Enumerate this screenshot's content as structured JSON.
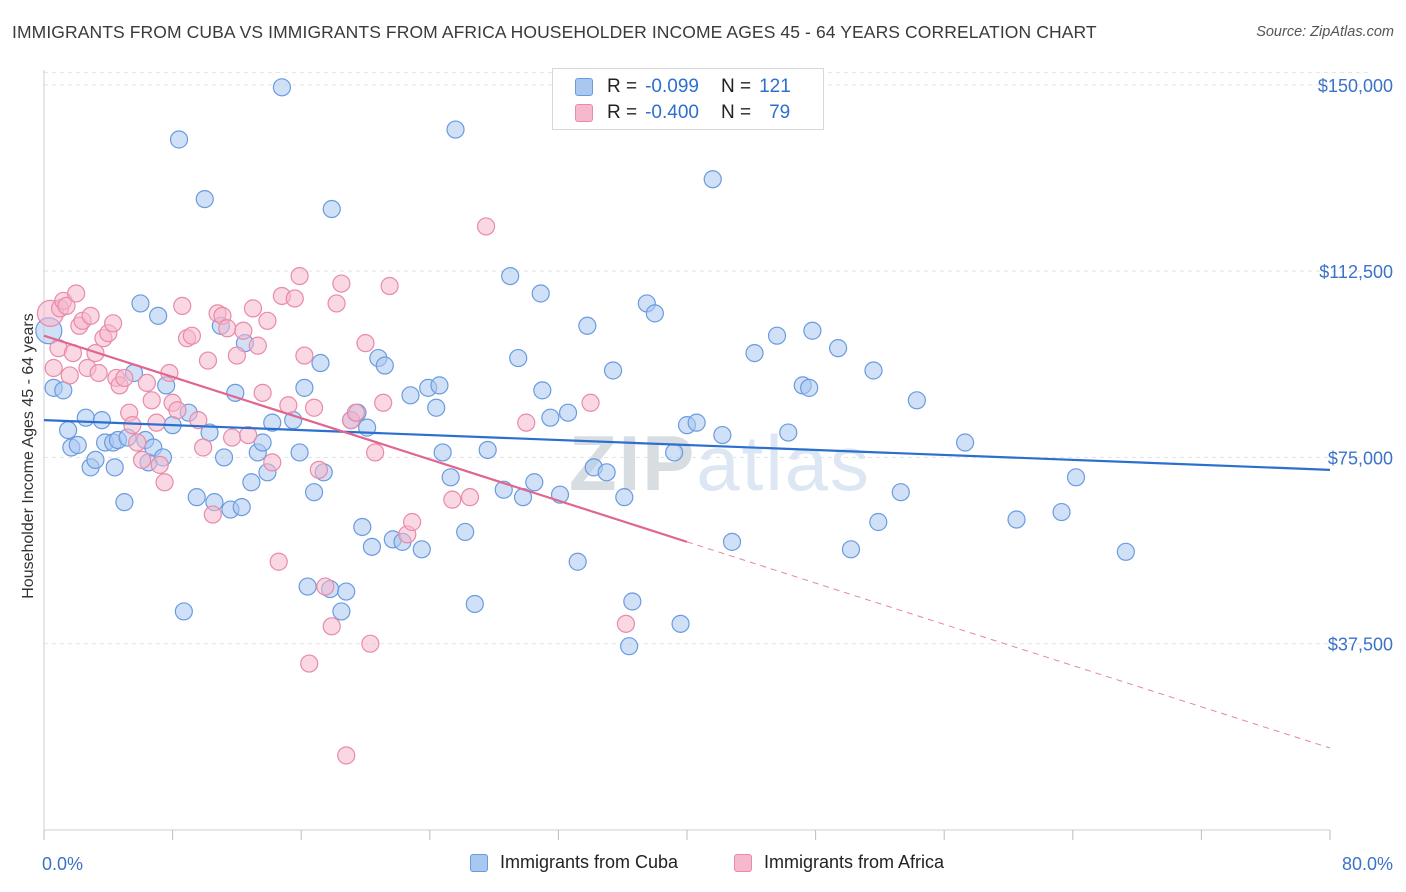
{
  "title": "IMMIGRANTS FROM CUBA VS IMMIGRANTS FROM AFRICA HOUSEHOLDER INCOME AGES 45 - 64 YEARS CORRELATION CHART",
  "source": "Source: ZipAtlas.com",
  "watermark": "ZIPatlas",
  "colors": {
    "cuba_fill": "#a9c8f0",
    "cuba_stroke": "#6a9be0",
    "cuba_line": "#2b6fcf",
    "africa_fill": "#f6b8cc",
    "africa_stroke": "#e98aa8",
    "africa_line": "#e06690",
    "tick_text": "#3b73c8",
    "grid": "#e3e3e3"
  },
  "legend": {
    "rows": [
      {
        "r_label": "R =",
        "r_value": "-0.099",
        "n_label": "N =",
        "n_value": "121"
      },
      {
        "r_label": "R =",
        "r_value": "-0.400",
        "n_label": "N =",
        "n_value": "79"
      }
    ]
  },
  "bottom_legend": [
    "Immigrants from Cuba",
    "Immigrants from Africa"
  ],
  "chart_data": {
    "type": "scatter",
    "title": "IMMIGRANTS FROM CUBA VS IMMIGRANTS FROM AFRICA HOUSEHOLDER INCOME AGES 45 - 64 YEARS CORRELATION CHART",
    "xlabel": "",
    "ylabel": "Householder Income Ages 45 - 64 years",
    "xlim": [
      0,
      80
    ],
    "ylim": [
      0,
      155000
    ],
    "x_tick_labels": [
      "0.0%",
      "80.0%"
    ],
    "y_ticks": [
      37500,
      75000,
      112500,
      150000
    ],
    "y_tick_labels": [
      "$37,500",
      "$75,000",
      "$112,500",
      "$150,000"
    ],
    "grid": true,
    "series": [
      {
        "name": "Immigrants from Cuba",
        "R": -0.099,
        "N": 121,
        "trend": {
          "x": [
            0,
            80
          ],
          "y": [
            82500,
            72500
          ]
        },
        "points": [
          [
            0.3,
            100500
          ],
          [
            0.6,
            89000
          ],
          [
            1.2,
            88500
          ],
          [
            1.5,
            80500
          ],
          [
            1.7,
            77000
          ],
          [
            2.1,
            77500
          ],
          [
            2.6,
            83000
          ],
          [
            2.9,
            73000
          ],
          [
            3.2,
            74500
          ],
          [
            3.6,
            82500
          ],
          [
            3.8,
            78000
          ],
          [
            4.3,
            78000
          ],
          [
            4.4,
            73000
          ],
          [
            4.6,
            78500
          ],
          [
            5.0,
            66000
          ],
          [
            5.2,
            79000
          ],
          [
            5.6,
            92000
          ],
          [
            6.0,
            106000
          ],
          [
            6.3,
            78500
          ],
          [
            6.5,
            74000
          ],
          [
            6.8,
            77000
          ],
          [
            7.1,
            103500
          ],
          [
            7.4,
            75000
          ],
          [
            7.6,
            89500
          ],
          [
            8.0,
            81500
          ],
          [
            8.4,
            139000
          ],
          [
            8.7,
            44000
          ],
          [
            9.0,
            84000
          ],
          [
            9.5,
            67000
          ],
          [
            10.0,
            127000
          ],
          [
            10.3,
            80000
          ],
          [
            10.6,
            66000
          ],
          [
            11.0,
            101500
          ],
          [
            11.2,
            75000
          ],
          [
            11.6,
            64500
          ],
          [
            11.9,
            88000
          ],
          [
            12.3,
            65000
          ],
          [
            12.5,
            98000
          ],
          [
            12.9,
            70000
          ],
          [
            13.3,
            76000
          ],
          [
            13.6,
            78000
          ],
          [
            13.9,
            72000
          ],
          [
            14.2,
            82000
          ],
          [
            14.8,
            149500
          ],
          [
            15.5,
            82500
          ],
          [
            15.9,
            76000
          ],
          [
            16.2,
            89000
          ],
          [
            16.4,
            49000
          ],
          [
            16.8,
            68000
          ],
          [
            17.2,
            94000
          ],
          [
            17.4,
            72000
          ],
          [
            17.8,
            48500
          ],
          [
            17.9,
            125000
          ],
          [
            18.5,
            44000
          ],
          [
            18.8,
            48000
          ],
          [
            19.1,
            82500
          ],
          [
            19.5,
            84000
          ],
          [
            19.8,
            61000
          ],
          [
            20.1,
            81000
          ],
          [
            20.4,
            57000
          ],
          [
            20.8,
            95000
          ],
          [
            21.2,
            93500
          ],
          [
            21.7,
            58500
          ],
          [
            22.3,
            58000
          ],
          [
            22.8,
            87500
          ],
          [
            23.5,
            56500
          ],
          [
            23.9,
            89000
          ],
          [
            24.4,
            85000
          ],
          [
            24.6,
            89500
          ],
          [
            24.8,
            76000
          ],
          [
            25.3,
            71000
          ],
          [
            25.6,
            141000
          ],
          [
            26.2,
            60000
          ],
          [
            26.8,
            45500
          ],
          [
            27.6,
            76500
          ],
          [
            28.6,
            68500
          ],
          [
            29.0,
            111500
          ],
          [
            29.5,
            95000
          ],
          [
            29.8,
            67000
          ],
          [
            30.5,
            70000
          ],
          [
            30.9,
            108000
          ],
          [
            31.0,
            88500
          ],
          [
            31.5,
            83000
          ],
          [
            32.1,
            67500
          ],
          [
            32.6,
            84000
          ],
          [
            33.2,
            54000
          ],
          [
            33.8,
            101500
          ],
          [
            34.2,
            73000
          ],
          [
            35.0,
            72000
          ],
          [
            35.4,
            92500
          ],
          [
            36.1,
            67000
          ],
          [
            36.6,
            46000
          ],
          [
            36.4,
            37000
          ],
          [
            37.5,
            106000
          ],
          [
            38.0,
            104000
          ],
          [
            39.2,
            76000
          ],
          [
            39.6,
            41500
          ],
          [
            40.0,
            81500
          ],
          [
            40.6,
            82000
          ],
          [
            41.6,
            131000
          ],
          [
            42.2,
            79500
          ],
          [
            42.8,
            58000
          ],
          [
            44.2,
            96000
          ],
          [
            45.6,
            99500
          ],
          [
            46.3,
            80000
          ],
          [
            47.2,
            89500
          ],
          [
            47.6,
            89000
          ],
          [
            47.8,
            100500
          ],
          [
            49.4,
            97000
          ],
          [
            50.2,
            56500
          ],
          [
            51.6,
            92500
          ],
          [
            51.9,
            62000
          ],
          [
            53.3,
            68000
          ],
          [
            54.3,
            86500
          ],
          [
            57.3,
            78000
          ],
          [
            60.5,
            62500
          ],
          [
            63.3,
            64000
          ],
          [
            64.2,
            71000
          ],
          [
            67.3,
            56000
          ]
        ]
      },
      {
        "name": "Immigrants from Africa",
        "R": -0.4,
        "N": 79,
        "trend": {
          "x": [
            0,
            40
          ],
          "y": [
            99500,
            58000
          ]
        },
        "trend_dashed": {
          "x": [
            40,
            80
          ],
          "y": [
            58000,
            16500
          ]
        },
        "points": [
          [
            0.4,
            104000
          ],
          [
            0.6,
            93000
          ],
          [
            0.9,
            97000
          ],
          [
            1.0,
            105000
          ],
          [
            1.2,
            106500
          ],
          [
            1.4,
            105500
          ],
          [
            1.6,
            91500
          ],
          [
            1.8,
            96000
          ],
          [
            2.0,
            108000
          ],
          [
            2.2,
            101500
          ],
          [
            2.4,
            102500
          ],
          [
            2.7,
            93000
          ],
          [
            2.9,
            103500
          ],
          [
            3.2,
            96000
          ],
          [
            3.4,
            92000
          ],
          [
            3.7,
            99000
          ],
          [
            4.0,
            100000
          ],
          [
            4.3,
            102000
          ],
          [
            4.5,
            91000
          ],
          [
            4.7,
            89500
          ],
          [
            5.0,
            91000
          ],
          [
            5.3,
            84000
          ],
          [
            5.5,
            81500
          ],
          [
            5.8,
            78000
          ],
          [
            6.1,
            74500
          ],
          [
            6.4,
            90000
          ],
          [
            6.7,
            86500
          ],
          [
            7.0,
            82000
          ],
          [
            7.2,
            73500
          ],
          [
            7.5,
            70000
          ],
          [
            7.8,
            92000
          ],
          [
            8.0,
            86000
          ],
          [
            8.3,
            84500
          ],
          [
            8.6,
            105500
          ],
          [
            8.9,
            99000
          ],
          [
            9.2,
            99500
          ],
          [
            9.6,
            82500
          ],
          [
            9.9,
            77000
          ],
          [
            10.2,
            94500
          ],
          [
            10.5,
            63500
          ],
          [
            10.8,
            104000
          ],
          [
            11.1,
            103500
          ],
          [
            11.4,
            101000
          ],
          [
            11.7,
            79000
          ],
          [
            12.0,
            95500
          ],
          [
            12.4,
            100500
          ],
          [
            12.7,
            79500
          ],
          [
            13.0,
            105000
          ],
          [
            13.3,
            97500
          ],
          [
            13.6,
            88000
          ],
          [
            13.9,
            102500
          ],
          [
            14.2,
            74000
          ],
          [
            14.6,
            54000
          ],
          [
            14.8,
            107500
          ],
          [
            15.2,
            85500
          ],
          [
            15.6,
            107000
          ],
          [
            15.9,
            111500
          ],
          [
            16.2,
            95500
          ],
          [
            16.5,
            33500
          ],
          [
            16.8,
            85000
          ],
          [
            17.1,
            72500
          ],
          [
            17.5,
            49000
          ],
          [
            17.9,
            41000
          ],
          [
            18.2,
            106000
          ],
          [
            18.5,
            110000
          ],
          [
            18.8,
            15000
          ],
          [
            19.1,
            82500
          ],
          [
            19.4,
            84000
          ],
          [
            20.0,
            98000
          ],
          [
            20.3,
            37500
          ],
          [
            20.6,
            76000
          ],
          [
            21.1,
            86000
          ],
          [
            21.5,
            109500
          ],
          [
            22.6,
            59500
          ],
          [
            22.9,
            62000
          ],
          [
            25.4,
            66500
          ],
          [
            26.5,
            67000
          ],
          [
            27.5,
            121500
          ],
          [
            30.0,
            82000
          ],
          [
            34.0,
            86000
          ],
          [
            36.2,
            41500
          ]
        ]
      }
    ]
  }
}
